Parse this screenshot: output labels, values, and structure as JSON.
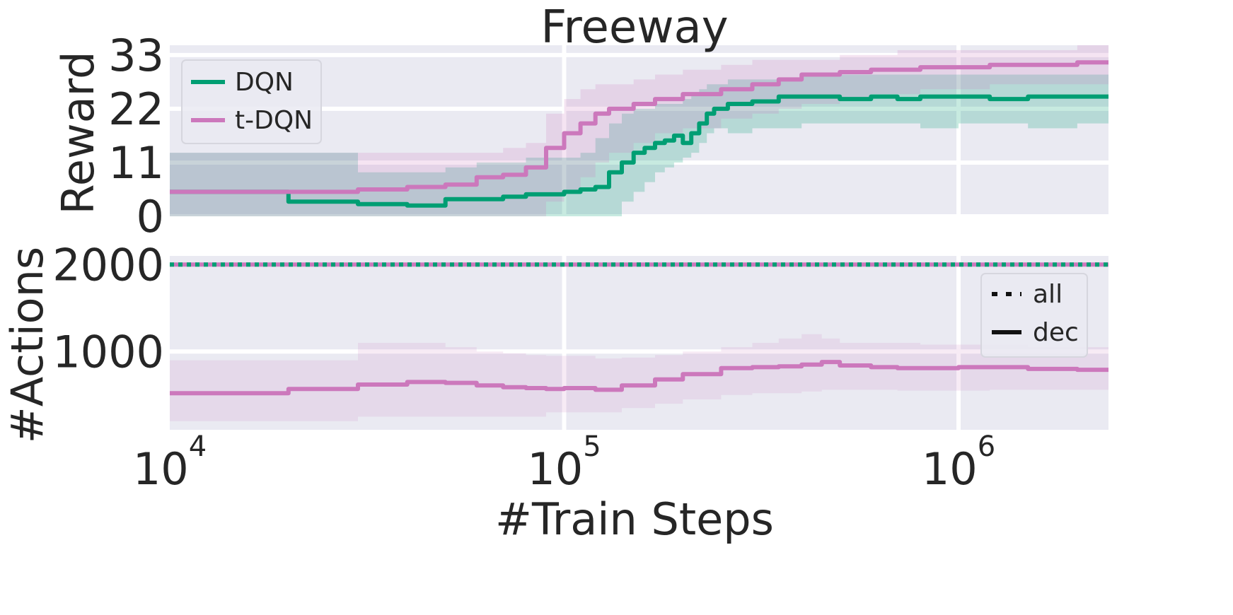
{
  "chart_data": [
    {
      "id": "reward",
      "type": "line",
      "title": "Freeway",
      "ylabel": "Reward",
      "xscale": "log",
      "xlim": [
        10000,
        2400000
      ],
      "ylim": [
        0,
        35
      ],
      "yticks": [
        0,
        11,
        22,
        33
      ],
      "grid": true,
      "legend": {
        "placement": "top-left",
        "entries": [
          "DQN",
          "t-DQN"
        ]
      },
      "series": [
        {
          "name": "DQN",
          "color": "#009e73",
          "step": true,
          "x": [
            10000,
            20000,
            30000,
            40000,
            50000,
            60000,
            70000,
            80000,
            100000,
            110000,
            120000,
            130000,
            140000,
            150000,
            160000,
            170000,
            180000,
            190000,
            200000,
            210000,
            220000,
            230000,
            240000,
            260000,
            300000,
            350000,
            400000,
            500000,
            600000,
            700000,
            800000,
            1000000,
            1200000,
            1500000,
            2000000,
            2400000
          ],
          "y": [
            5,
            3,
            2.5,
            2.2,
            3.5,
            3.5,
            4,
            4.5,
            5,
            5.5,
            6,
            9,
            11,
            13,
            14,
            15,
            15.5,
            16.5,
            15,
            17,
            19,
            21,
            22,
            23,
            23.5,
            24.5,
            24.5,
            24,
            24.5,
            24,
            24.5,
            24.5,
            24,
            24.5,
            24.5,
            24.5
          ],
          "lower": [
            0,
            0,
            0,
            0,
            0,
            0,
            0,
            0,
            0,
            0,
            0,
            0,
            3,
            5,
            7,
            9,
            10,
            11,
            12,
            13,
            15,
            17,
            18,
            17,
            18,
            18,
            19,
            19,
            19,
            19,
            18,
            19,
            19,
            18,
            19,
            19
          ],
          "upper": [
            13,
            13,
            9,
            9,
            10,
            11,
            11,
            12,
            12,
            13,
            16,
            19,
            21,
            22,
            22,
            23,
            23,
            23,
            24,
            25,
            26,
            27,
            27,
            28,
            28,
            28,
            29,
            29,
            29,
            29,
            29,
            29,
            29,
            29,
            29,
            29
          ]
        },
        {
          "name": "t-DQN",
          "color": "#cc78bc",
          "step": true,
          "x": [
            10000,
            20000,
            30000,
            40000,
            50000,
            60000,
            70000,
            80000,
            90000,
            100000,
            110000,
            120000,
            130000,
            150000,
            170000,
            200000,
            250000,
            300000,
            350000,
            400000,
            500000,
            600000,
            700000,
            800000,
            1000000,
            1200000,
            1500000,
            2000000,
            2400000
          ],
          "y": [
            5,
            5,
            5.5,
            6,
            6.5,
            8,
            8.5,
            10,
            14,
            17,
            19,
            21,
            22,
            23,
            24,
            25,
            26,
            27,
            28,
            29,
            29.5,
            30,
            30,
            30.5,
            30.5,
            31,
            31,
            31.5,
            31.5
          ],
          "lower": [
            0,
            0,
            0,
            0,
            0,
            0,
            0,
            0,
            3,
            5,
            8,
            11,
            13,
            15,
            17,
            18,
            20,
            21,
            22,
            23,
            24,
            25,
            25,
            26,
            26,
            27,
            27,
            27,
            27
          ],
          "upper": [
            13,
            13,
            13,
            13,
            13,
            13,
            14,
            15,
            21,
            24,
            26,
            27,
            27,
            28,
            29,
            30,
            31,
            32,
            32,
            32,
            33,
            33,
            34,
            34,
            34,
            34,
            34,
            35,
            35
          ]
        }
      ]
    },
    {
      "id": "actions",
      "type": "line",
      "xlabel": "#Train Steps",
      "ylabel": "#Actions",
      "xscale": "log",
      "xlim": [
        10000,
        2400000
      ],
      "xticks": [
        {
          "base": "10",
          "exp": "4",
          "value": 10000
        },
        {
          "base": "10",
          "exp": "5",
          "value": 100000
        },
        {
          "base": "10",
          "exp": "6",
          "value": 1000000
        }
      ],
      "ylim": [
        100,
        2100
      ],
      "yticks": [
        1000,
        2000
      ],
      "grid": true,
      "legend": {
        "placement": "top-right",
        "entries": [
          "all",
          "dec"
        ]
      },
      "series": [
        {
          "name": "all",
          "style": "dotted",
          "color": "#009e73",
          "x": [
            10000,
            2400000
          ],
          "y": [
            2000,
            2000
          ]
        },
        {
          "name": "dec",
          "style": "solid",
          "color": "#cc78bc",
          "step": true,
          "x": [
            10000,
            20000,
            30000,
            40000,
            50000,
            60000,
            70000,
            80000,
            90000,
            100000,
            120000,
            140000,
            170000,
            200000,
            250000,
            300000,
            350000,
            400000,
            450000,
            500000,
            600000,
            700000,
            800000,
            1000000,
            1200000,
            1500000,
            2000000,
            2400000
          ],
          "y": [
            520,
            570,
            620,
            650,
            640,
            610,
            590,
            580,
            570,
            580,
            560,
            610,
            680,
            740,
            810,
            820,
            830,
            850,
            880,
            840,
            820,
            810,
            810,
            820,
            820,
            800,
            790,
            790
          ],
          "lower": [
            200,
            200,
            250,
            250,
            250,
            250,
            250,
            250,
            300,
            300,
            300,
            350,
            400,
            450,
            500,
            520,
            520,
            540,
            560,
            560,
            560,
            550,
            550,
            550,
            560,
            560,
            560,
            560
          ],
          "upper": [
            900,
            900,
            1100,
            1100,
            1050,
            1000,
            980,
            960,
            950,
            950,
            920,
            930,
            960,
            1000,
            1050,
            1100,
            1150,
            1200,
            1150,
            1100,
            1100,
            1100,
            1080,
            1080,
            1080,
            1050,
            1050,
            1050
          ]
        }
      ]
    }
  ]
}
